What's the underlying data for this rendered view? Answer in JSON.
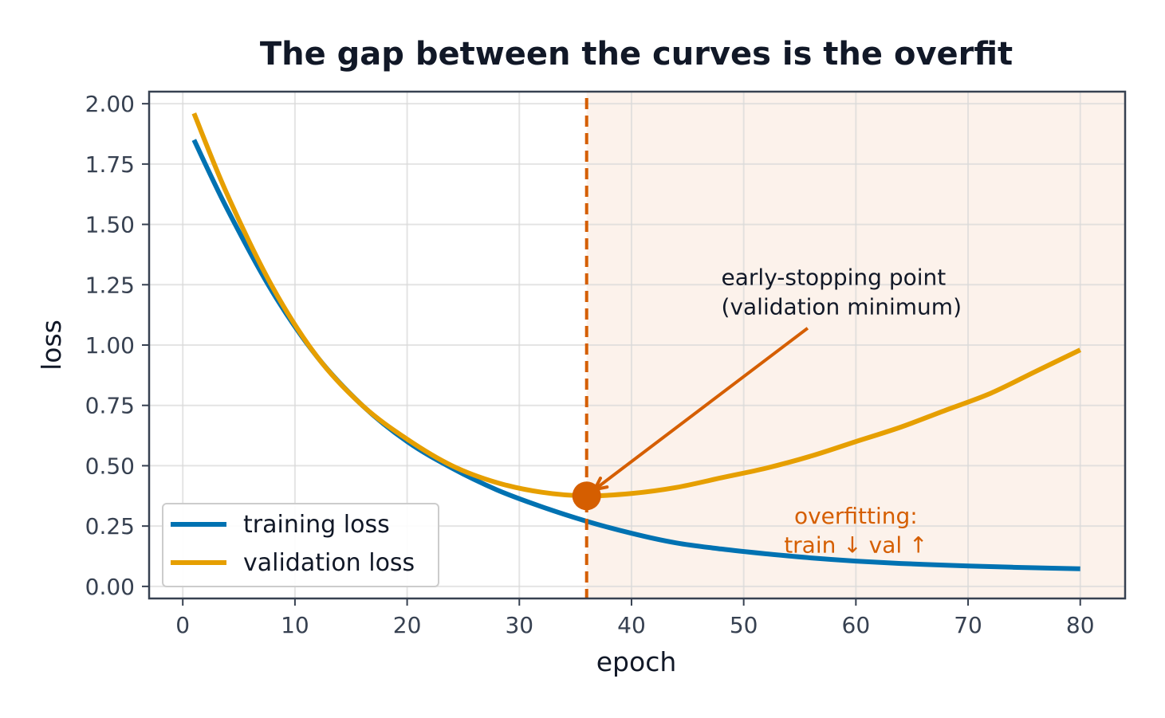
{
  "chart_data": {
    "type": "line",
    "title": "The gap between the curves is the overfit",
    "xlabel": "epoch",
    "ylabel": "loss",
    "xlim": [
      -3,
      84
    ],
    "ylim": [
      -0.05,
      2.05
    ],
    "xticks": [
      0,
      10,
      20,
      30,
      40,
      50,
      60,
      70,
      80
    ],
    "yticks": [
      0.0,
      0.25,
      0.5,
      0.75,
      1.0,
      1.25,
      1.5,
      1.75,
      2.0
    ],
    "xtick_labels": [
      "0",
      "10",
      "20",
      "30",
      "40",
      "50",
      "60",
      "70",
      "80"
    ],
    "ytick_labels": [
      "0.00",
      "0.25",
      "0.50",
      "0.75",
      "1.00",
      "1.25",
      "1.50",
      "1.75",
      "2.00"
    ],
    "grid": true,
    "legend_position": "lower-left",
    "series": [
      {
        "name": "training loss",
        "color": "#0072b2",
        "x": [
          1,
          4,
          8,
          12,
          16,
          20,
          24,
          28,
          32,
          36,
          40,
          44,
          48,
          52,
          56,
          60,
          64,
          68,
          72,
          76,
          80
        ],
        "y": [
          1.85,
          1.56,
          1.22,
          0.95,
          0.75,
          0.6,
          0.49,
          0.4,
          0.33,
          0.27,
          0.22,
          0.18,
          0.155,
          0.135,
          0.118,
          0.105,
          0.095,
          0.088,
          0.082,
          0.077,
          0.073
        ]
      },
      {
        "name": "validation loss",
        "color": "#e69f00",
        "x": [
          1,
          4,
          8,
          12,
          16,
          20,
          24,
          28,
          32,
          36,
          40,
          44,
          48,
          52,
          56,
          60,
          64,
          68,
          72,
          76,
          80
        ],
        "y": [
          1.96,
          1.62,
          1.24,
          0.95,
          0.75,
          0.61,
          0.5,
          0.43,
          0.39,
          0.375,
          0.385,
          0.41,
          0.45,
          0.49,
          0.54,
          0.6,
          0.66,
          0.73,
          0.8,
          0.89,
          0.98
        ]
      }
    ],
    "early_stop": {
      "x": 36,
      "y": 0.375,
      "color": "#d55e00",
      "label_lines": [
        "early-stopping point",
        "(validation minimum)"
      ],
      "label_anchor_x": 48,
      "label_anchor_y": 1.25,
      "arrow_tail_x": 55.7,
      "arrow_tail_y": 1.07
    },
    "overfit_region": {
      "x_start": 36,
      "x_end": 84,
      "color": "#d55e00",
      "label_lines": [
        "overfitting:",
        "train ↓  val ↑"
      ],
      "label_center_x": 60,
      "label_y": [
        0.26,
        0.14
      ]
    }
  }
}
